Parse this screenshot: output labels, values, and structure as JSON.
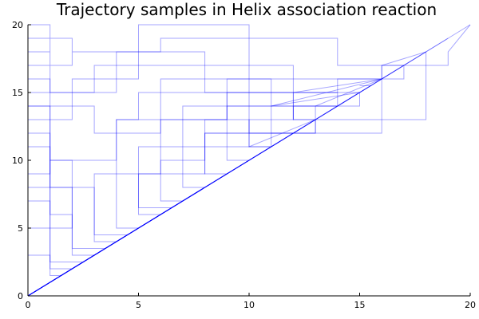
{
  "chart_data": {
    "type": "line",
    "title": "Trajectory samples in Helix association reaction",
    "xlabel": "",
    "ylabel": "",
    "xlim": [
      0,
      20
    ],
    "ylim": [
      0,
      20
    ],
    "xticks": [
      "0",
      "5",
      "10",
      "15",
      "20"
    ],
    "yticks": [
      "0",
      "5",
      "10",
      "15",
      "20"
    ],
    "grid": false,
    "legend": "none",
    "series_color": "#0000ff",
    "series": [
      {
        "x": [
          0,
          2,
          1,
          1,
          0,
          0,
          1,
          1,
          0,
          0,
          1,
          1,
          2,
          2,
          1,
          1,
          0,
          0,
          2,
          2,
          6,
          6,
          14,
          14,
          19,
          19,
          20
        ],
        "y": [
          0,
          2,
          2,
          19,
          19,
          17,
          17,
          19,
          19,
          18,
          18,
          17,
          17,
          19,
          19,
          20,
          20,
          19,
          19,
          18,
          18,
          19,
          19,
          17,
          17,
          18,
          20
        ]
      },
      {
        "x": [
          0,
          3,
          2,
          2,
          1,
          1,
          0,
          0,
          1,
          1,
          3,
          3,
          12,
          12,
          18,
          18,
          19
        ],
        "y": [
          0,
          3,
          3,
          10,
          10,
          14,
          14,
          16,
          16,
          15,
          15,
          17,
          17,
          13,
          13,
          18,
          19
        ]
      },
      {
        "x": [
          0,
          4,
          3,
          3,
          1,
          1,
          0,
          0,
          2,
          2,
          5,
          5,
          10,
          10,
          16,
          16,
          18
        ],
        "y": [
          0,
          4,
          4,
          8,
          8,
          12,
          12,
          13,
          13,
          16,
          16,
          20,
          20,
          12,
          12,
          17,
          18
        ]
      },
      {
        "x": [
          0,
          5,
          4,
          4,
          5,
          5,
          14,
          14,
          17,
          17,
          18
        ],
        "y": [
          0,
          5,
          5,
          13,
          13,
          15,
          15,
          16,
          16,
          17,
          18
        ]
      },
      {
        "x": [
          0,
          6,
          5,
          5,
          5,
          5,
          7,
          7,
          15,
          15,
          17
        ],
        "y": [
          0,
          6,
          6,
          8,
          8,
          11,
          11,
          14,
          14,
          15,
          17
        ]
      },
      {
        "x": [
          0,
          7,
          6,
          6,
          8,
          8,
          13,
          13,
          16
        ],
        "y": [
          0,
          7,
          7,
          10,
          10,
          12,
          12,
          14,
          16
        ]
      },
      {
        "x": [
          0,
          8,
          7,
          7,
          9,
          9,
          12,
          12,
          16
        ],
        "y": [
          0,
          8,
          8,
          11,
          11,
          14,
          14,
          15,
          16
        ]
      },
      {
        "x": [
          0,
          9,
          8,
          8,
          10,
          10,
          11,
          11,
          15
        ],
        "y": [
          0,
          9,
          9,
          12,
          12,
          13,
          13,
          14,
          15
        ]
      },
      {
        "x": [
          0,
          10,
          9,
          9,
          11,
          11,
          12,
          12,
          14
        ],
        "y": [
          0,
          10,
          10,
          11,
          11,
          13,
          13,
          14,
          14
        ]
      },
      {
        "x": [
          0,
          11,
          10,
          10,
          13,
          13,
          13
        ],
        "y": [
          0,
          11,
          11,
          12,
          12,
          13,
          13
        ]
      },
      {
        "x": [
          0,
          12,
          11,
          11,
          12
        ],
        "y": [
          0,
          12,
          12,
          12,
          12
        ]
      },
      {
        "x": [
          0,
          13,
          12,
          12,
          14
        ],
        "y": [
          0,
          13,
          13,
          14,
          14
        ]
      },
      {
        "x": [
          0,
          14
        ],
        "y": [
          0,
          14
        ]
      },
      {
        "x": [
          0,
          1.5,
          1,
          1,
          0,
          0,
          2,
          2,
          1,
          1,
          0,
          0,
          1,
          1,
          4,
          4,
          9,
          9,
          16,
          16,
          17
        ],
        "y": [
          0,
          1.5,
          1.5,
          3,
          3,
          5,
          5,
          6,
          6,
          7,
          7,
          9,
          9,
          10,
          10,
          13,
          13,
          16,
          16,
          17,
          17
        ]
      },
      {
        "x": [
          0,
          2.5,
          1,
          1,
          0,
          0,
          3,
          3,
          6,
          6,
          11,
          11,
          16
        ],
        "y": [
          0,
          2.5,
          2.5,
          11,
          11,
          14,
          14,
          12,
          12,
          16,
          16,
          14,
          16
        ]
      },
      {
        "x": [
          0,
          3.5,
          2,
          2,
          0,
          0,
          4,
          4,
          8,
          8,
          15
        ],
        "y": [
          0,
          3.5,
          3.5,
          8,
          8,
          15,
          15,
          18,
          18,
          15,
          15
        ]
      },
      {
        "x": [
          0,
          4.5,
          3,
          3,
          6,
          6,
          9,
          9,
          14,
          14,
          15
        ],
        "y": [
          0,
          4.5,
          4.5,
          9,
          9,
          13,
          13,
          15,
          15,
          14,
          15
        ]
      },
      {
        "x": [
          0,
          6.5,
          5,
          5,
          8,
          8,
          10,
          10,
          13
        ],
        "y": [
          0,
          6.5,
          6.5,
          9,
          9,
          13,
          13,
          11,
          13
        ]
      },
      {
        "x": [
          0,
          15.5,
          15
        ],
        "y": [
          0,
          15.5,
          15.5
        ]
      },
      {
        "x": [
          0,
          17
        ],
        "y": [
          0,
          17
        ]
      },
      {
        "x": [
          0,
          18
        ],
        "y": [
          0,
          18
        ]
      },
      {
        "x": [
          0,
          19,
          20
        ],
        "y": [
          0,
          19,
          20
        ]
      }
    ]
  }
}
